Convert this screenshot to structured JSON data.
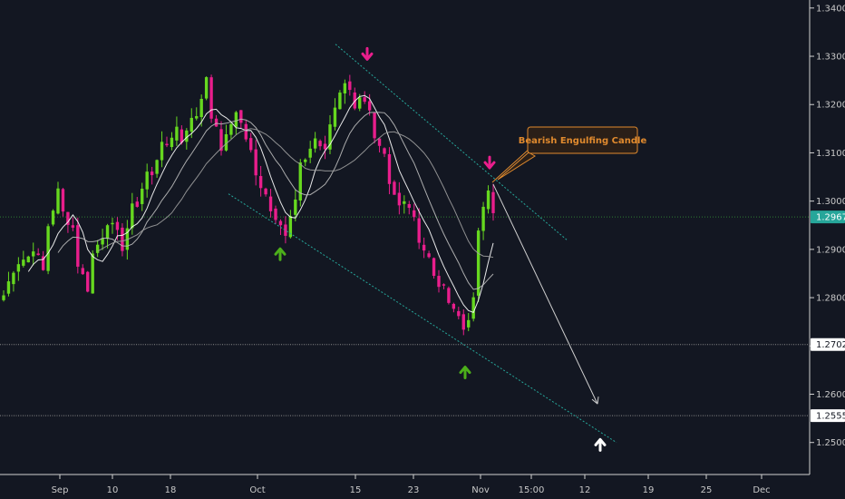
{
  "chart_data": {
    "type": "candlestick",
    "ylim": [
      1.241,
      1.341
    ],
    "y_ticks": [
      "1.34000",
      "1.33000",
      "1.32000",
      "1.31000",
      "1.30000",
      "1.29000",
      "1.28000",
      "1.27000",
      "1.26000",
      "1.25000"
    ],
    "x_ticks": [
      "Sep",
      "10",
      "18",
      "Oct",
      "15",
      "23",
      "Nov",
      "15:00",
      "12",
      "19",
      "25",
      "Dec"
    ],
    "price_tags": [
      {
        "value": 1.29671,
        "label": "1.29671",
        "color": "#26a69a",
        "style": "current"
      },
      {
        "value": 1.27029,
        "label": "1.27029",
        "color": "#b5b5b5",
        "style": "level"
      },
      {
        "value": 1.25557,
        "label": "1.25557",
        "color": "#b5b5b5",
        "style": "level"
      }
    ],
    "annotation": {
      "text": "Bearish Engulfing Candle",
      "color": "#e08a2e"
    },
    "colors": {
      "up": "#66d81f",
      "down": "#e91e8c",
      "channel": "#26a69a",
      "background": "#131722"
    },
    "arrows": [
      {
        "dir": "down",
        "color": "#e91e8c",
        "at_price": 1.3305
      },
      {
        "dir": "down",
        "color": "#e91e8c",
        "at_price": 1.308
      },
      {
        "dir": "up",
        "color": "#4caf1a",
        "at_price": 1.289
      },
      {
        "dir": "up",
        "color": "#4caf1a",
        "at_price": 1.2645
      },
      {
        "dir": "up",
        "color": "#ffffff",
        "at_price": 1.2495
      }
    ],
    "close_anchors": [
      1.2805,
      1.286,
      1.2875,
      1.2885,
      1.2905,
      1.2855,
      1.295,
      1.302,
      1.2975,
      1.2945,
      1.287,
      1.282,
      1.289,
      1.293,
      1.296,
      1.293,
      1.2905,
      1.2985,
      1.2995,
      1.306,
      1.305,
      1.313,
      1.3105,
      1.316,
      1.312,
      1.318,
      1.317,
      1.326,
      1.318,
      1.311,
      1.313,
      1.319,
      1.316,
      1.31,
      1.305,
      1.302,
      1.298,
      1.296,
      1.293,
      1.3,
      1.307,
      1.311,
      1.313,
      1.31,
      1.316,
      1.323,
      1.325,
      1.32,
      1.322,
      1.318,
      1.312,
      1.309,
      1.303,
      1.299,
      1.301,
      1.297,
      1.292,
      1.288,
      1.284,
      1.2815,
      1.28,
      1.276,
      1.2735,
      1.279,
      1.294,
      1.302,
      1.2975
    ]
  }
}
